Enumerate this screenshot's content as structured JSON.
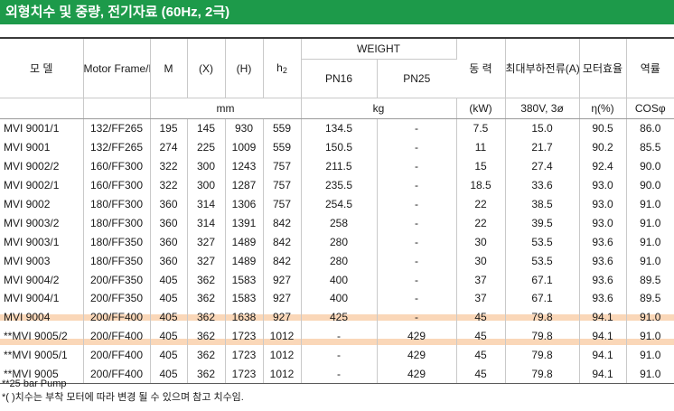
{
  "title": "외형치수 및 중량, 전기자료 (60Hz, 2극)",
  "headers": {
    "model": "모 델",
    "motor": "Motor Frame/Flange",
    "m": "M",
    "x": "(X)",
    "h": "(H)",
    "h2": "h",
    "h2_sub": "2",
    "weight": "WEIGHT",
    "pn16": "PN16",
    "pn25": "PN25",
    "power": "동 력",
    "current": "최대부하전류(A)",
    "eff": "모터효율",
    "pf": "역률"
  },
  "units": {
    "mm": "mm",
    "kg": "kg",
    "kw": "(kW)",
    "volt": "380V, 3ø",
    "eta": "η(%)",
    "cos": "COSφ"
  },
  "rows": [
    [
      "MVI 9001/1",
      "132/FF265",
      "195",
      "145",
      "930",
      "559",
      "134.5",
      "-",
      "7.5",
      "15.0",
      "90.5",
      "86.0"
    ],
    [
      "MVI 9001",
      "132/FF265",
      "274",
      "225",
      "1009",
      "559",
      "150.5",
      "-",
      "11",
      "21.7",
      "90.2",
      "85.5"
    ],
    [
      "MVI 9002/2",
      "160/FF300",
      "322",
      "300",
      "1243",
      "757",
      "211.5",
      "-",
      "15",
      "27.4",
      "92.4",
      "90.0"
    ],
    [
      "MVI 9002/1",
      "160/FF300",
      "322",
      "300",
      "1287",
      "757",
      "235.5",
      "-",
      "18.5",
      "33.6",
      "93.0",
      "90.0"
    ],
    [
      "MVI 9002",
      "180/FF300",
      "360",
      "314",
      "1306",
      "757",
      "254.5",
      "-",
      "22",
      "38.5",
      "93.0",
      "91.0"
    ],
    [
      "MVI 9003/2",
      "180/FF300",
      "360",
      "314",
      "1391",
      "842",
      "258",
      "-",
      "22",
      "39.5",
      "93.0",
      "91.0"
    ],
    [
      "MVI 9003/1",
      "180/FF350",
      "360",
      "327",
      "1489",
      "842",
      "280",
      "-",
      "30",
      "53.5",
      "93.6",
      "91.0"
    ],
    [
      "MVI 9003",
      "180/FF350",
      "360",
      "327",
      "1489",
      "842",
      "280",
      "-",
      "30",
      "53.5",
      "93.6",
      "91.0"
    ],
    [
      "MVI 9004/2",
      "200/FF350",
      "405",
      "362",
      "1583",
      "927",
      "400",
      "-",
      "37",
      "67.1",
      "93.6",
      "89.5"
    ],
    [
      "MVI 9004/1",
      "200/FF350",
      "405",
      "362",
      "1583",
      "927",
      "400",
      "-",
      "37",
      "67.1",
      "93.6",
      "89.5"
    ],
    [
      "MVI 9004",
      "200/FF400",
      "405",
      "362",
      "1638",
      "927",
      "425",
      "-",
      "45",
      "79.8",
      "94.1",
      "91.0"
    ],
    [
      "**MVI 9005/2",
      "200/FF400",
      "405",
      "362",
      "1723",
      "1012",
      "-",
      "429",
      "45",
      "79.8",
      "94.1",
      "91.0"
    ],
    [
      "**MVI 9005/1",
      "200/FF400",
      "405",
      "362",
      "1723",
      "1012",
      "-",
      "429",
      "45",
      "79.8",
      "94.1",
      "91.0"
    ],
    [
      "**MVI 9005",
      "200/FF400",
      "405",
      "362",
      "1723",
      "1012",
      "-",
      "429",
      "45",
      "79.8",
      "94.1",
      "91.0"
    ]
  ],
  "notes": [
    "**25 bar Pump",
    "*(    )치수는 부착 모터에 따라 변경 될 수 있으며 참고 치수임."
  ],
  "highlight": {
    "row": "**MVI 9005/2",
    "color": "#f8c9a0"
  },
  "colors": {
    "title_bg": "#1d9a4a",
    "title_text": "#ffffff"
  }
}
